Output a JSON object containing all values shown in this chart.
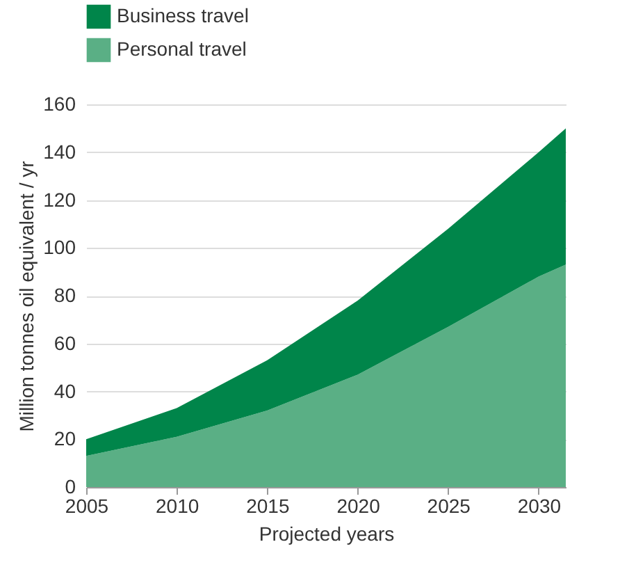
{
  "chart_data": {
    "type": "area",
    "stacked": true,
    "xlabel": "Projected years",
    "ylabel": "Million tonnes oil equivalent / yr",
    "x": [
      2005,
      2010,
      2015,
      2020,
      2025,
      2030,
      2031.5
    ],
    "series": [
      {
        "name": "Personal travel",
        "color": "#5aaf85",
        "values": [
          13,
          21,
          32,
          47,
          67,
          88,
          93
        ]
      },
      {
        "name": "Business travel",
        "color": "#00854a",
        "values": [
          7,
          12,
          21,
          31,
          41,
          52,
          57
        ]
      }
    ],
    "xlim": [
      2005,
      2031.5
    ],
    "xticks": [
      2005,
      2010,
      2015,
      2020,
      2025,
      2030
    ],
    "ylim": [
      0,
      160
    ],
    "yticks": [
      0,
      20,
      40,
      60,
      80,
      100,
      120,
      140,
      160
    ],
    "grid": "y",
    "legend": "top left"
  }
}
